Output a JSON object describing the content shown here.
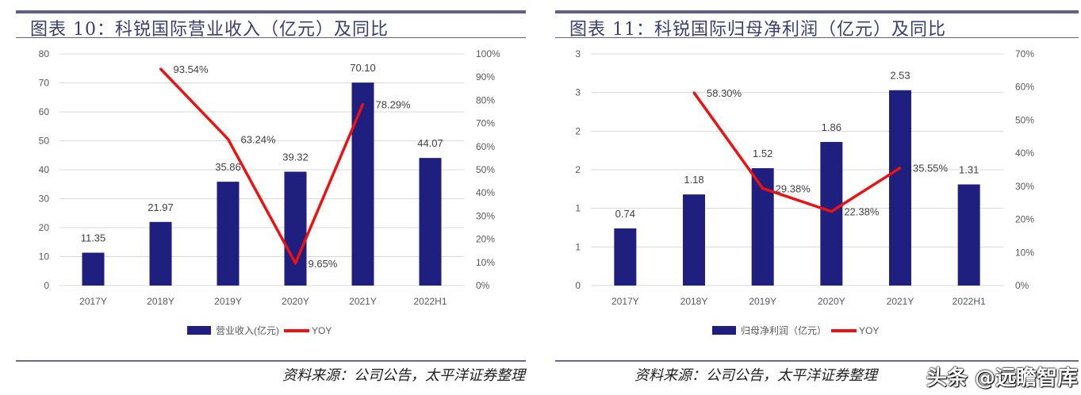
{
  "colors": {
    "bar": "#1f1f80",
    "line": "#ee1111",
    "grid": "#d9d9d9",
    "text": "#595959",
    "rule": "#5e5f8a"
  },
  "watermark": "头条 @远瞻智库",
  "chart_data": [
    {
      "type": "bar",
      "title": "图表 10：科锐国际营业收入（亿元）及同比",
      "categories": [
        "2017Y",
        "2018Y",
        "2019Y",
        "2020Y",
        "2021Y",
        "2022H1"
      ],
      "series": [
        {
          "name": "营业收入(亿元)",
          "type": "bar",
          "axis": "left",
          "values": [
            11.35,
            21.97,
            35.86,
            39.32,
            70.1,
            44.07
          ],
          "labels": [
            "11.35",
            "21.97",
            "35.86",
            "39.32",
            "70.10",
            "44.07"
          ]
        },
        {
          "name": "YOY",
          "type": "line",
          "axis": "right",
          "values": [
            null,
            93.54,
            63.24,
            9.65,
            78.29,
            null
          ],
          "labels": [
            null,
            "93.54%",
            "63.24%",
            "9.65%",
            "78.29%",
            null
          ]
        }
      ],
      "y_left": {
        "range": [
          0,
          80
        ],
        "ticks": [
          "0",
          "10",
          "20",
          "30",
          "40",
          "50",
          "60",
          "70",
          "80"
        ]
      },
      "y_right": {
        "range": [
          0,
          100
        ],
        "ticks": [
          "0%",
          "10%",
          "20%",
          "30%",
          "40%",
          "50%",
          "60%",
          "70%",
          "80%",
          "90%",
          "100%"
        ]
      },
      "grid": true,
      "legend": "bottom",
      "source": "资料来源：公司公告，太平洋证券整理"
    },
    {
      "type": "bar",
      "title": "图表 11：科锐国际归母净利润（亿元）及同比",
      "categories": [
        "2017Y",
        "2018Y",
        "2019Y",
        "2020Y",
        "2021Y",
        "2022H1"
      ],
      "series": [
        {
          "name": "归母净利润（亿元）",
          "type": "bar",
          "axis": "left",
          "values": [
            0.74,
            1.18,
            1.52,
            1.86,
            2.53,
            1.31
          ],
          "labels": [
            "0.74",
            "1.18",
            "1.52",
            "1.86",
            "2.53",
            "1.31"
          ]
        },
        {
          "name": "YOY",
          "type": "line",
          "axis": "right",
          "values": [
            null,
            58.3,
            29.38,
            22.38,
            35.55,
            null
          ],
          "labels": [
            null,
            "58.30%",
            "29.38%",
            "22.38%",
            "35.55%",
            null
          ]
        }
      ],
      "y_left": {
        "range": [
          0,
          3
        ],
        "ticks": [
          "0",
          "1",
          "1",
          "2",
          "2",
          "3",
          "3"
        ]
      },
      "y_right": {
        "range": [
          0,
          70
        ],
        "ticks": [
          "0%",
          "10%",
          "20%",
          "30%",
          "40%",
          "50%",
          "60%",
          "70%"
        ]
      },
      "grid": true,
      "legend": "bottom",
      "source": "资料来源：公司公告，太平洋证券整理"
    }
  ]
}
